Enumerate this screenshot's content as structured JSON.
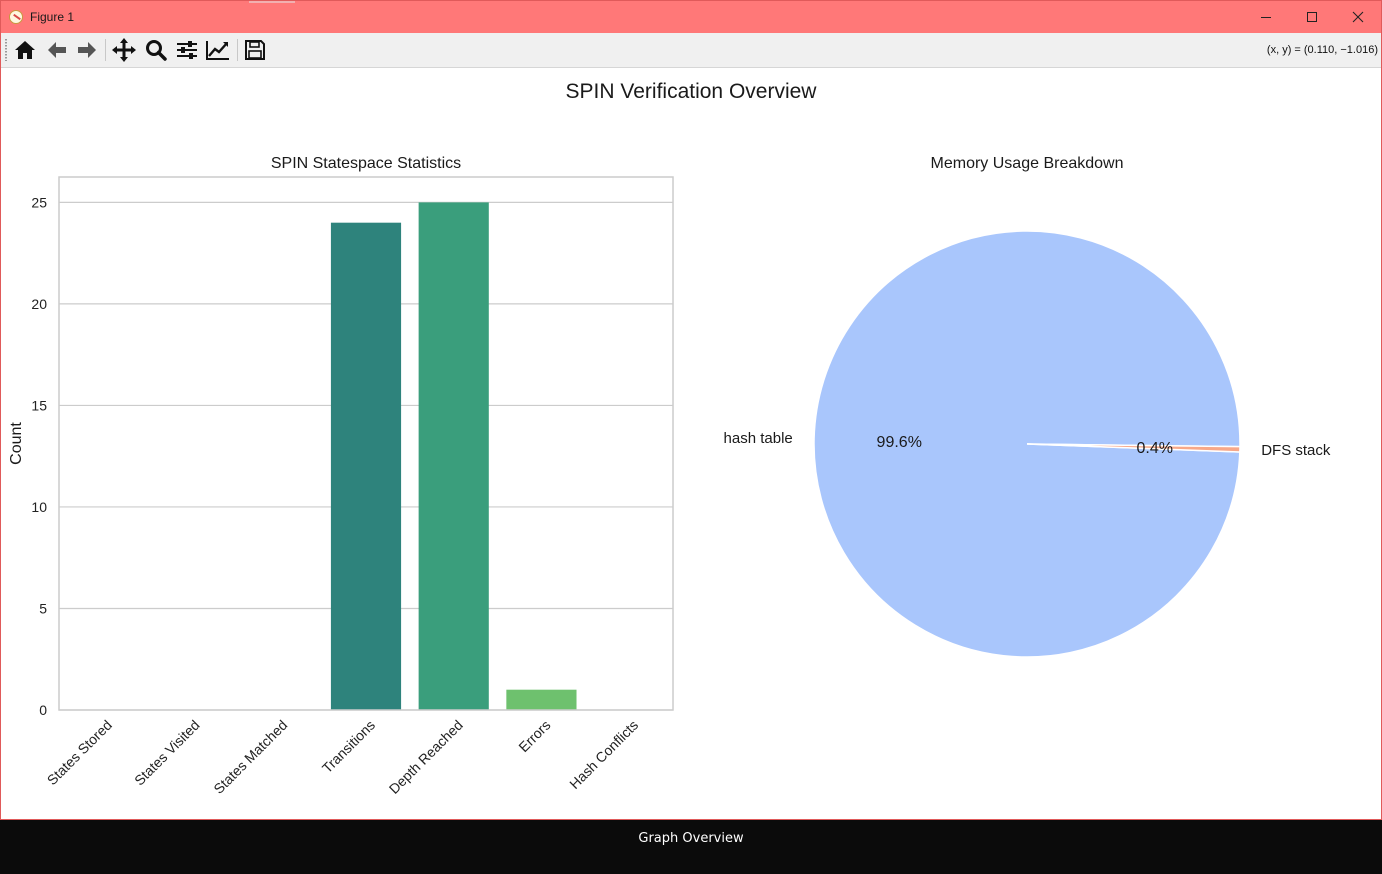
{
  "window": {
    "title": "Figure 1"
  },
  "toolbar": {
    "buttons": [
      {
        "name": "home-icon",
        "label": "Home"
      },
      {
        "name": "back-arrow-icon",
        "label": "Back"
      },
      {
        "name": "forward-arrow-icon",
        "label": "Forward"
      },
      {
        "name": "pan-move-icon",
        "label": "Pan"
      },
      {
        "name": "zoom-magnifier-icon",
        "label": "Zoom"
      },
      {
        "name": "configure-subplots-icon",
        "label": "Subplots"
      },
      {
        "name": "edit-axes-icon",
        "label": "Customize"
      },
      {
        "name": "save-disk-icon",
        "label": "Save"
      }
    ],
    "coordinates": "(x, y) = (0.110, −1.016)"
  },
  "figure": {
    "suptitle": "SPIN Verification Overview"
  },
  "chart_data": [
    {
      "type": "bar",
      "title": "SPIN Statespace Statistics",
      "xlabel": "",
      "ylabel": "Count",
      "categories": [
        "States Stored",
        "States Visited",
        "States Matched",
        "Transitions",
        "Depth Reached",
        "Errors",
        "Hash Conflicts"
      ],
      "values": [
        0,
        0,
        0,
        24,
        25,
        1,
        0
      ],
      "colors": [
        "#440154",
        "#443983",
        "#31688e",
        "#2e837c",
        "#3a9e7c",
        "#6ec16e",
        "#b8de29"
      ],
      "ylim": [
        0,
        26.25
      ],
      "yticks": [
        "0",
        "5",
        "10",
        "15",
        "20",
        "25"
      ],
      "grid": "horizontal"
    },
    {
      "type": "pie",
      "title": "Memory Usage Breakdown",
      "labels": [
        "hash table",
        "DFS stack"
      ],
      "values": [
        99.6,
        0.4
      ],
      "pct_labels": [
        "99.6%",
        "0.4%"
      ],
      "colors": [
        "#a9c6fc",
        "#f7a889"
      ]
    }
  ],
  "taskbar": {
    "label": "Graph Overview"
  }
}
